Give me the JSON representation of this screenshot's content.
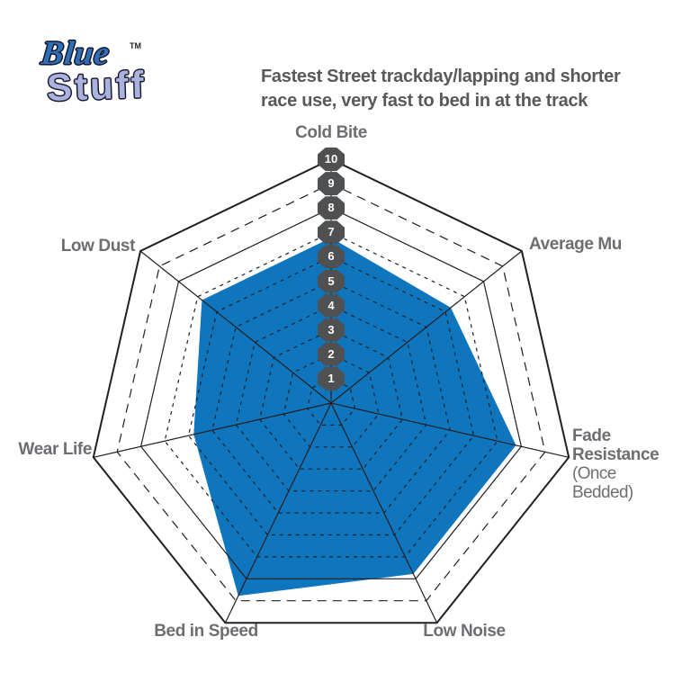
{
  "logo": {
    "line1": "Blue",
    "line2": "Stuff",
    "tm": "TM"
  },
  "chart_data": {
    "type": "radar",
    "title": "Fastest Street trackday/lapping and shorter race use, very fast to bed in at the track",
    "title_lines": [
      "Fastest Street trackday/lapping and shorter",
      "race use, very fast to bed in at the track"
    ],
    "categories": [
      "Cold Bite",
      "Average Mu",
      "Fade Resistance",
      "Low Noise",
      "Bed in Speed",
      "Wear Life",
      "Low Dust"
    ],
    "category_sublabels": [
      "",
      "",
      "(Once Bedded)",
      "",
      "",
      "",
      ""
    ],
    "series": [
      {
        "name": "BlueStuff",
        "values": [
          7,
          6.5,
          8,
          8,
          9,
          6,
          7
        ]
      }
    ],
    "scale": {
      "min": 1,
      "max": 10,
      "ticks": [
        "1",
        "2",
        "3",
        "4",
        "5",
        "6",
        "7",
        "8",
        "9",
        "10"
      ],
      "rings_solid": [
        8,
        10
      ],
      "rings_dashed": [
        1,
        2,
        3,
        4,
        5,
        6,
        7,
        9
      ]
    },
    "legend": "none",
    "grid": "heptagon web, 7 spokes, tick badges along top spoke",
    "colors": {
      "series_fill": "#0f76bd",
      "grid_line": "#231f20",
      "scale_badge_bg": "#4f5052",
      "scale_badge_text": "#ffffff",
      "axis_label": "#6d6e71",
      "title_text": "#58595b",
      "logo_blue": "#2e6fb6",
      "logo_periwinkle": "#a9b3de"
    }
  }
}
